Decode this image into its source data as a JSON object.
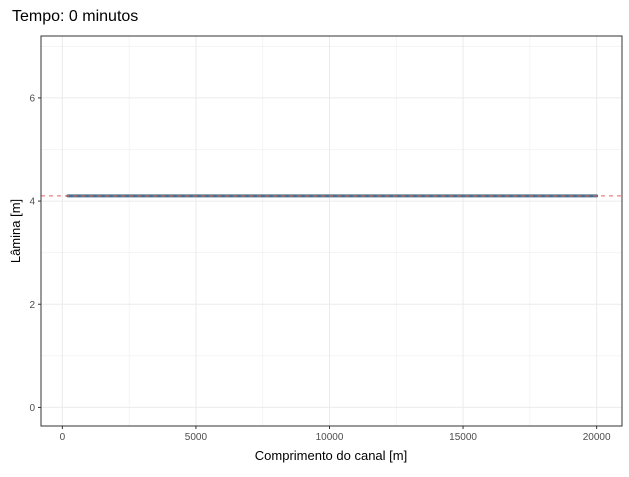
{
  "chart_data": {
    "type": "line",
    "title": "Tempo: 0 minutos",
    "xlabel": "Comprimento do canal [m]",
    "ylabel": "Lâmina [m]",
    "xlim": [
      -800,
      20950
    ],
    "ylim": [
      -0.36,
      7.2
    ],
    "x_ticks": [
      0,
      5000,
      10000,
      15000,
      20000
    ],
    "y_ticks": [
      0,
      2,
      4,
      6
    ],
    "grid": true,
    "legend": "none",
    "series": [
      {
        "x": [
          200,
          20000
        ],
        "y": [
          4.1,
          4.1
        ],
        "color": "#4a6f8a",
        "style": "solid"
      }
    ],
    "reference_line": {
      "y": 4.1,
      "color": "#e06666",
      "style": "dashed"
    }
  }
}
